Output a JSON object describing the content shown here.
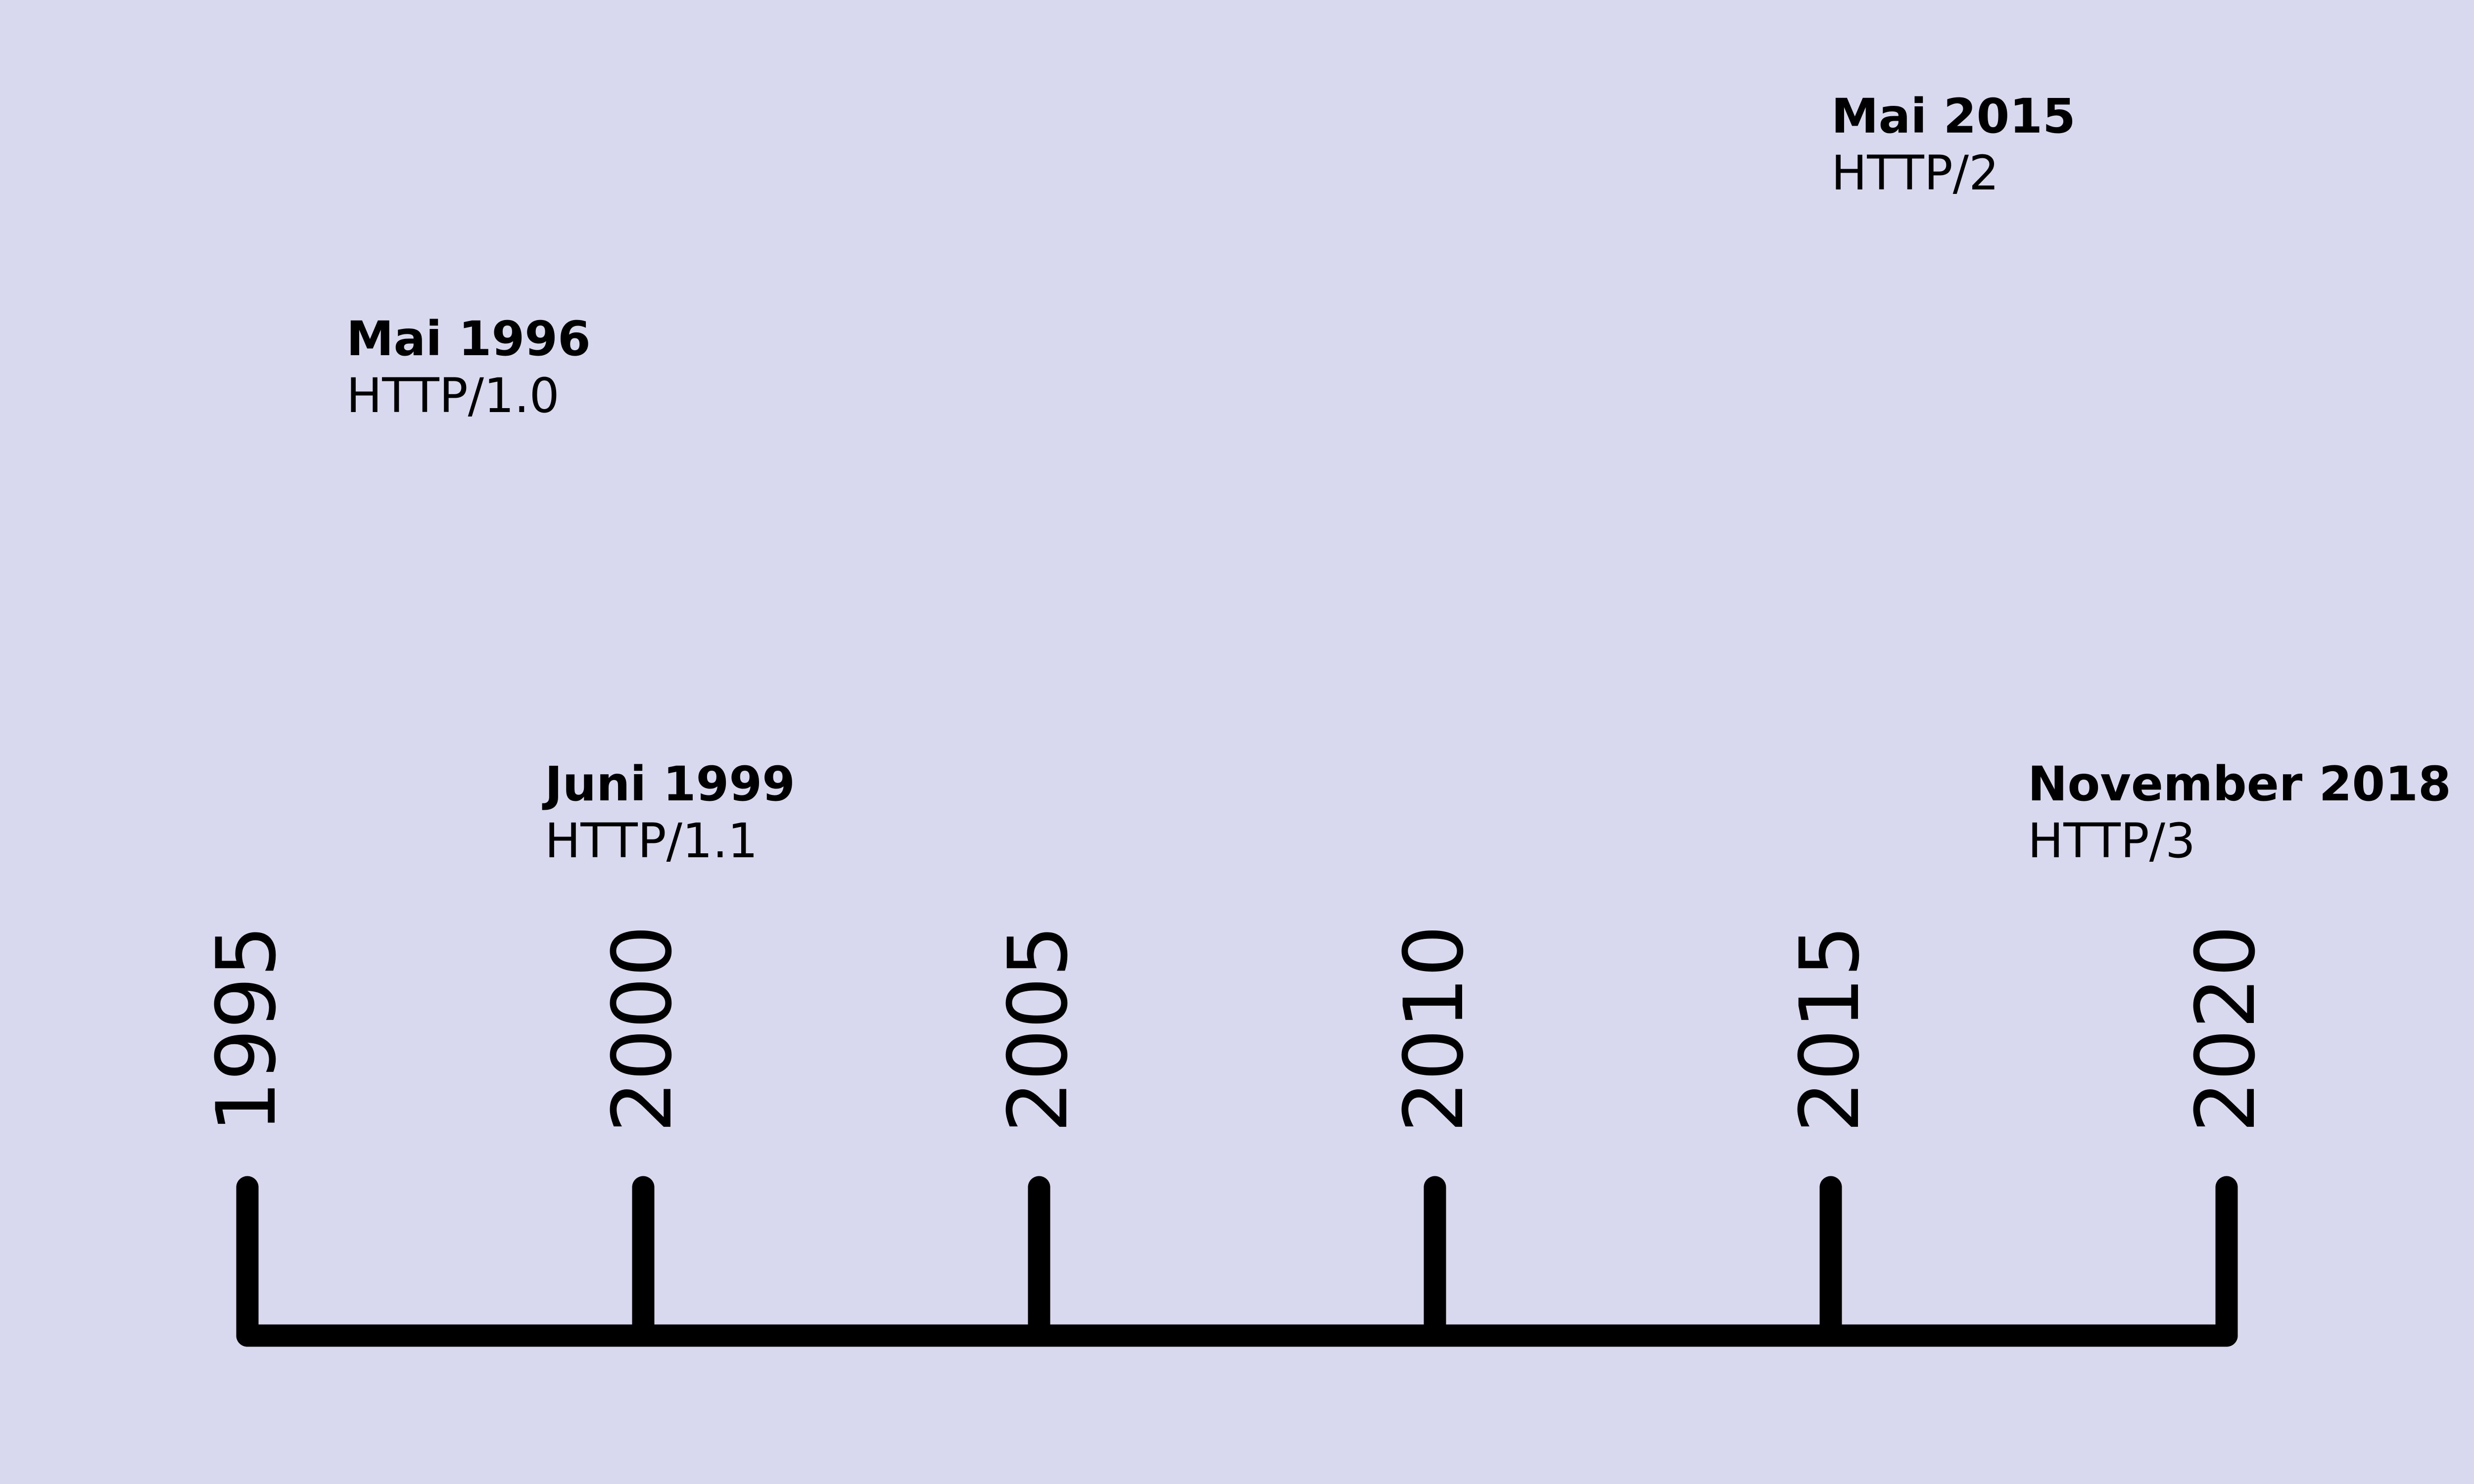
{
  "colors": {
    "background": "#d8d8ef",
    "ink": "#000000"
  },
  "timeline": {
    "type": "timeline",
    "axis_ticks": [
      1995,
      2000,
      2005,
      2010,
      2015,
      2020
    ],
    "tick_labels": [
      "1995",
      "2000",
      "2005",
      "2010",
      "2015",
      "2020"
    ],
    "events": [
      {
        "date_label": "Mai 1996",
        "name": "HTTP/1.0",
        "year": 1996.37
      },
      {
        "date_label": "Juni 1999",
        "name": "HTTP/1.1",
        "year": 1999.45
      },
      {
        "date_label": "Mai 2015",
        "name": "HTTP/2",
        "year": 2015.37
      },
      {
        "date_label": "November 2018",
        "name": "HTTP/3",
        "year": 2018.87
      }
    ]
  }
}
